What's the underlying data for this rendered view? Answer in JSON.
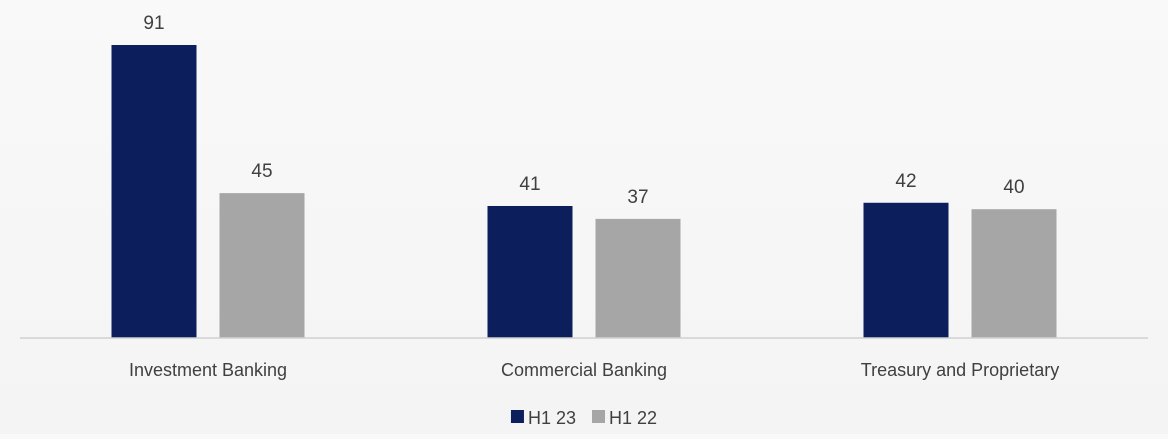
{
  "chart_data": {
    "type": "bar",
    "title": "",
    "xlabel": "",
    "ylabel": "",
    "categories": [
      "Investment Banking",
      "Commercial Banking",
      "Treasury and Proprietary"
    ],
    "series": [
      {
        "name": "H1 23",
        "values": [
          91,
          41,
          42
        ],
        "color": "#0c1f5c"
      },
      {
        "name": "H1 22",
        "values": [
          45,
          37,
          40
        ],
        "color": "#a6a6a6"
      }
    ],
    "ylim": [
      0,
      91
    ],
    "grid": false,
    "legend": "bottom-center",
    "data_labels": true
  }
}
